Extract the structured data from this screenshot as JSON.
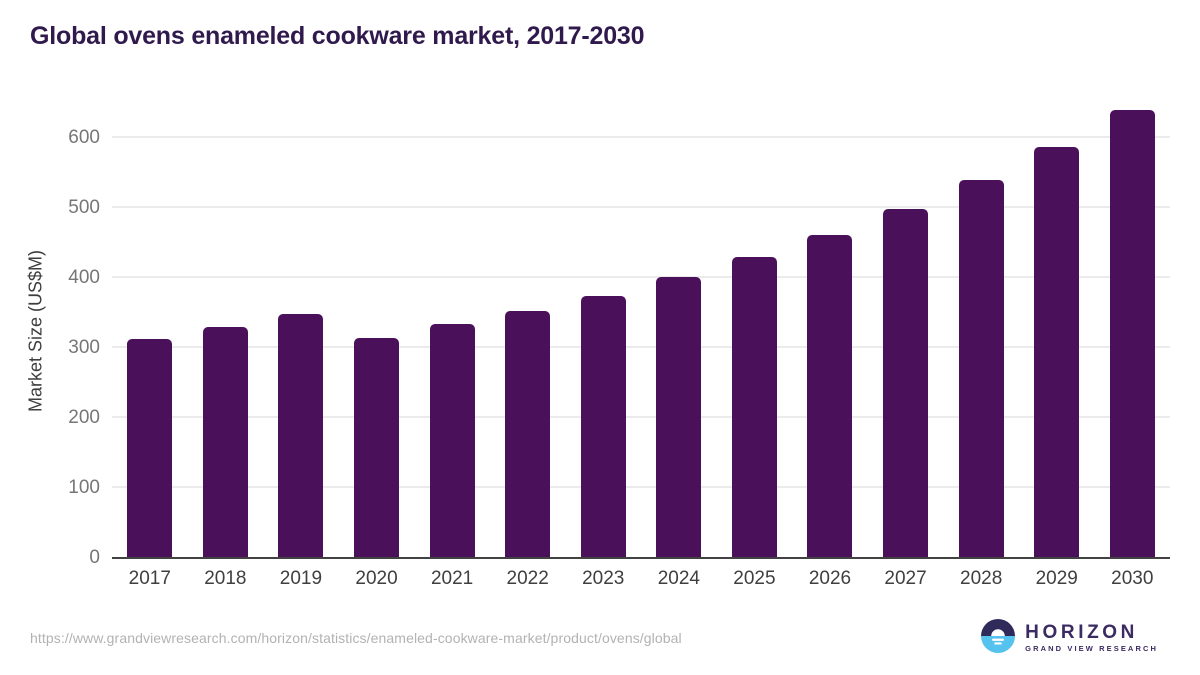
{
  "header": {
    "title": "Global ovens enameled cookware market, 2017-2030"
  },
  "chart_data": {
    "type": "bar",
    "title": "Global ovens enameled cookware market, 2017-2030",
    "categories": [
      "2017",
      "2018",
      "2019",
      "2020",
      "2021",
      "2022",
      "2023",
      "2024",
      "2025",
      "2026",
      "2027",
      "2028",
      "2029",
      "2030"
    ],
    "values": [
      313,
      330,
      349,
      315,
      334,
      353,
      375,
      401,
      430,
      462,
      499,
      540,
      587,
      640
    ],
    "xlabel": "",
    "ylabel": "Market Size (US$M)",
    "ylim": [
      0,
      650
    ],
    "yticks": [
      0,
      100,
      200,
      300,
      400,
      500,
      600
    ],
    "grid": "horizontal-only",
    "legend": "none"
  },
  "footer": {
    "source_url": "https://www.grandviewresearch.com/horizon/statistics/enameled-cookware-market/product/ovens/global",
    "logo": {
      "name": "HORIZON",
      "tagline": "GRAND VIEW RESEARCH"
    }
  },
  "colors": {
    "title_text": "#301a4d",
    "bar": "#4a115a",
    "gridline": "#ebebeb",
    "axis_line": "#424242",
    "y_tick_text": "#767676",
    "x_tick_text": "#3f3f3f",
    "source_url_text": "#b2b2b2",
    "logo_navy": "#2f2a5a",
    "logo_blue": "#56c2ee",
    "logo_text": "#3b2b63"
  }
}
